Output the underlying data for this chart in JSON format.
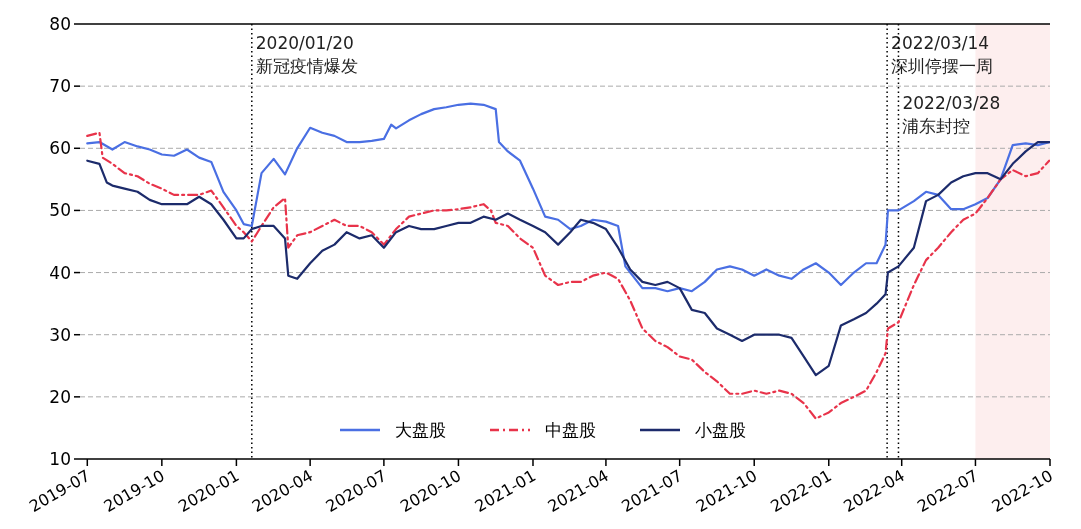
{
  "chart_data": {
    "type": "line",
    "xlim": [
      "2019-06-22",
      "2022-10-01"
    ],
    "ylim": [
      10,
      80
    ],
    "yticks": [
      10,
      20,
      30,
      40,
      50,
      60,
      70,
      80
    ],
    "xticks": [
      {
        "value": "2019-07-01",
        "label": "2019-07"
      },
      {
        "value": "2019-10-01",
        "label": "2019-10"
      },
      {
        "value": "2020-01-01",
        "label": "2020-01"
      },
      {
        "value": "2020-04-01",
        "label": "2020-04"
      },
      {
        "value": "2020-07-01",
        "label": "2020-07"
      },
      {
        "value": "2020-10-01",
        "label": "2020-10"
      },
      {
        "value": "2021-01-01",
        "label": "2021-01"
      },
      {
        "value": "2021-04-01",
        "label": "2021-04"
      },
      {
        "value": "2021-07-01",
        "label": "2021-07"
      },
      {
        "value": "2021-10-01",
        "label": "2021-10"
      },
      {
        "value": "2022-01-01",
        "label": "2022-01"
      },
      {
        "value": "2022-04-01",
        "label": "2022-04"
      },
      {
        "value": "2022-07-01",
        "label": "2022-07"
      },
      {
        "value": "2022-10-01",
        "label": "2022-10"
      }
    ],
    "grid": "y",
    "legend": "bottom",
    "series": [
      {
        "name": "大盘股",
        "color": "#4a6fe3",
        "line_style": "solid",
        "x": [
          "2019-07-01",
          "2019-07-16",
          "2019-08-01",
          "2019-08-16",
          "2019-09-01",
          "2019-09-16",
          "2019-10-01",
          "2019-10-16",
          "2019-11-01",
          "2019-11-16",
          "2019-12-01",
          "2019-12-16",
          "2020-01-01",
          "2020-01-10",
          "2020-01-20",
          "2020-02-01",
          "2020-02-16",
          "2020-03-01",
          "2020-03-16",
          "2020-04-01",
          "2020-04-16",
          "2020-05-01",
          "2020-05-16",
          "2020-06-01",
          "2020-06-16",
          "2020-07-01",
          "2020-07-10",
          "2020-07-16",
          "2020-08-01",
          "2020-08-16",
          "2020-09-01",
          "2020-09-16",
          "2020-10-01",
          "2020-10-16",
          "2020-11-01",
          "2020-11-16",
          "2020-11-20",
          "2020-12-01",
          "2020-12-16",
          "2021-01-01",
          "2021-01-16",
          "2021-02-01",
          "2021-02-16",
          "2021-03-01",
          "2021-03-16",
          "2021-04-01",
          "2021-04-16",
          "2021-04-25",
          "2021-05-16",
          "2021-06-01",
          "2021-06-16",
          "2021-07-01",
          "2021-07-16",
          "2021-08-01",
          "2021-08-16",
          "2021-09-01",
          "2021-09-16",
          "2021-10-01",
          "2021-10-16",
          "2021-11-01",
          "2021-11-16",
          "2021-12-01",
          "2021-12-16",
          "2022-01-01",
          "2022-01-16",
          "2022-02-01",
          "2022-02-16",
          "2022-03-01",
          "2022-03-12",
          "2022-03-15",
          "2022-03-28",
          "2022-04-16",
          "2022-05-01",
          "2022-05-16",
          "2022-06-01",
          "2022-06-16",
          "2022-07-01",
          "2022-07-16",
          "2022-08-01",
          "2022-08-16",
          "2022-09-01",
          "2022-09-16",
          "2022-09-30"
        ],
        "values": [
          60.8,
          61,
          59.8,
          61,
          60.3,
          59.8,
          59,
          58.8,
          59.8,
          58.5,
          57.8,
          53,
          50,
          47.8,
          47.5,
          56,
          58.3,
          55.8,
          60,
          63.3,
          62.5,
          62,
          61,
          61,
          61.2,
          61.5,
          63.8,
          63.2,
          64.5,
          65.5,
          66.3,
          66.6,
          67,
          67.2,
          67,
          66.3,
          61,
          59.5,
          58,
          53.5,
          49,
          48.5,
          47,
          47.5,
          48.5,
          48.2,
          47.5,
          41,
          37.5,
          37.5,
          37,
          37.5,
          37,
          38.5,
          40.5,
          41,
          40.5,
          39.5,
          40.5,
          39.5,
          39,
          40.5,
          41.5,
          40,
          38,
          40,
          41.5,
          41.5,
          44.5,
          50,
          50,
          51.5,
          53,
          52.5,
          50.2,
          50.2,
          51,
          52,
          55,
          60.5,
          60.8,
          60.5,
          61
        ]
      },
      {
        "name": "中盘股",
        "color": "#e8334a",
        "line_style": "dashdot",
        "x": [
          "2019-07-01",
          "2019-07-16",
          "2019-07-20",
          "2019-08-01",
          "2019-08-16",
          "2019-09-01",
          "2019-09-16",
          "2019-10-01",
          "2019-10-16",
          "2019-11-01",
          "2019-11-16",
          "2019-12-01",
          "2019-12-16",
          "2020-01-01",
          "2020-01-10",
          "2020-01-20",
          "2020-02-01",
          "2020-02-16",
          "2020-03-01",
          "2020-03-05",
          "2020-03-16",
          "2020-04-01",
          "2020-04-16",
          "2020-05-01",
          "2020-05-16",
          "2020-06-01",
          "2020-06-16",
          "2020-07-01",
          "2020-07-16",
          "2020-08-01",
          "2020-08-16",
          "2020-09-01",
          "2020-09-16",
          "2020-10-01",
          "2020-10-16",
          "2020-11-01",
          "2020-11-10",
          "2020-11-16",
          "2020-12-01",
          "2020-12-16",
          "2021-01-01",
          "2021-01-16",
          "2021-02-01",
          "2021-02-16",
          "2021-03-01",
          "2021-03-16",
          "2021-04-01",
          "2021-04-16",
          "2021-05-01",
          "2021-05-16",
          "2021-06-01",
          "2021-06-16",
          "2021-07-01",
          "2021-07-16",
          "2021-08-01",
          "2021-08-16",
          "2021-09-01",
          "2021-09-16",
          "2021-10-01",
          "2021-10-16",
          "2021-11-01",
          "2021-11-16",
          "2021-12-01",
          "2021-12-16",
          "2022-01-01",
          "2022-01-16",
          "2022-02-01",
          "2022-02-16",
          "2022-03-01",
          "2022-03-12",
          "2022-03-15",
          "2022-03-28",
          "2022-04-16",
          "2022-05-01",
          "2022-05-16",
          "2022-06-01",
          "2022-06-16",
          "2022-07-01",
          "2022-07-16",
          "2022-08-01",
          "2022-08-16",
          "2022-09-01",
          "2022-09-16",
          "2022-09-30"
        ],
        "values": [
          62,
          62.5,
          58.5,
          57.5,
          56,
          55.5,
          54.3,
          53.5,
          52.5,
          52.5,
          52.5,
          53.2,
          50.5,
          47.5,
          46.5,
          45,
          47.5,
          50.5,
          52,
          44,
          46,
          46.5,
          47.5,
          48.5,
          47.5,
          47.5,
          46.5,
          44.5,
          47,
          49,
          49.5,
          50,
          50,
          50.2,
          50.5,
          51,
          50,
          48,
          47.5,
          45.5,
          44,
          39.5,
          38,
          38.5,
          38.5,
          39.5,
          40,
          39,
          35.5,
          31,
          29,
          28,
          26.5,
          26,
          24,
          22.5,
          20.5,
          20.5,
          21,
          20.5,
          21,
          20.5,
          19,
          16.5,
          17.5,
          19,
          20,
          21,
          24,
          27,
          31,
          32,
          38,
          42,
          44,
          46.5,
          48.5,
          49.5,
          52,
          55,
          56.5,
          55.5,
          56,
          58
        ]
      },
      {
        "name": "小盘股",
        "color": "#1c2b6b",
        "line_style": "solid",
        "x": [
          "2019-07-01",
          "2019-07-16",
          "2019-07-25",
          "2019-08-01",
          "2019-08-16",
          "2019-09-01",
          "2019-09-16",
          "2019-10-01",
          "2019-10-16",
          "2019-11-01",
          "2019-11-16",
          "2019-12-01",
          "2019-12-16",
          "2020-01-01",
          "2020-01-10",
          "2020-01-20",
          "2020-02-01",
          "2020-02-16",
          "2020-03-01",
          "2020-03-05",
          "2020-03-16",
          "2020-04-01",
          "2020-04-16",
          "2020-05-01",
          "2020-05-16",
          "2020-06-01",
          "2020-06-16",
          "2020-07-01",
          "2020-07-16",
          "2020-08-01",
          "2020-08-16",
          "2020-09-01",
          "2020-09-16",
          "2020-10-01",
          "2020-10-16",
          "2020-11-01",
          "2020-11-16",
          "2020-12-01",
          "2020-12-16",
          "2021-01-01",
          "2021-01-16",
          "2021-02-01",
          "2021-02-16",
          "2021-03-01",
          "2021-03-16",
          "2021-04-01",
          "2021-04-16",
          "2021-05-01",
          "2021-05-16",
          "2021-06-01",
          "2021-06-16",
          "2021-07-01",
          "2021-07-16",
          "2021-08-01",
          "2021-08-16",
          "2021-09-01",
          "2021-09-16",
          "2021-10-01",
          "2021-10-16",
          "2021-11-01",
          "2021-11-16",
          "2021-12-01",
          "2021-12-16",
          "2022-01-01",
          "2022-01-16",
          "2022-02-01",
          "2022-02-16",
          "2022-03-01",
          "2022-03-12",
          "2022-03-15",
          "2022-03-28",
          "2022-04-16",
          "2022-05-01",
          "2022-05-16",
          "2022-06-01",
          "2022-06-16",
          "2022-07-01",
          "2022-07-16",
          "2022-08-01",
          "2022-08-16",
          "2022-09-01",
          "2022-09-16",
          "2022-09-30"
        ],
        "values": [
          58,
          57.5,
          54.5,
          54,
          53.5,
          53,
          51.7,
          51,
          51,
          51,
          52.2,
          51,
          48.5,
          45.5,
          45.5,
          47,
          47.5,
          47.5,
          45.5,
          39.5,
          39,
          41.5,
          43.5,
          44.5,
          46.5,
          45.5,
          46,
          44,
          46.5,
          47.5,
          47,
          47,
          47.5,
          48,
          48,
          49,
          48.5,
          49.5,
          48.5,
          47.5,
          46.5,
          44.5,
          46.5,
          48.5,
          48,
          47,
          44,
          40.5,
          38.5,
          38,
          38.5,
          37.5,
          34,
          33.5,
          31,
          30,
          29,
          30,
          30,
          30,
          29.5,
          26.5,
          23.5,
          25,
          31.5,
          32.5,
          33.5,
          35,
          36.5,
          40,
          41,
          44,
          51.5,
          52.5,
          54.5,
          55.5,
          56,
          56,
          55,
          57.5,
          59.5,
          61,
          61
        ]
      }
    ],
    "ref_lines": [
      {
        "axis": "x",
        "value": "2020-01-20",
        "label": "2020/01/20\n新冠疫情爆发",
        "line_style": "dotted",
        "color": "#000000"
      },
      {
        "axis": "x",
        "value": "2022-03-14",
        "label": "2022/03/14\n深圳停摆一周",
        "line_style": "dotted",
        "color": "#000000"
      },
      {
        "axis": "x",
        "value": "2022-03-28",
        "label": "2022/03/28\n浦东封控",
        "line_style": "dotted",
        "color": "#000000"
      }
    ],
    "bands": [
      {
        "axis": "x",
        "from": "2022-07-01",
        "to": "2022-10-01",
        "color": "#fdeeee"
      }
    ]
  }
}
